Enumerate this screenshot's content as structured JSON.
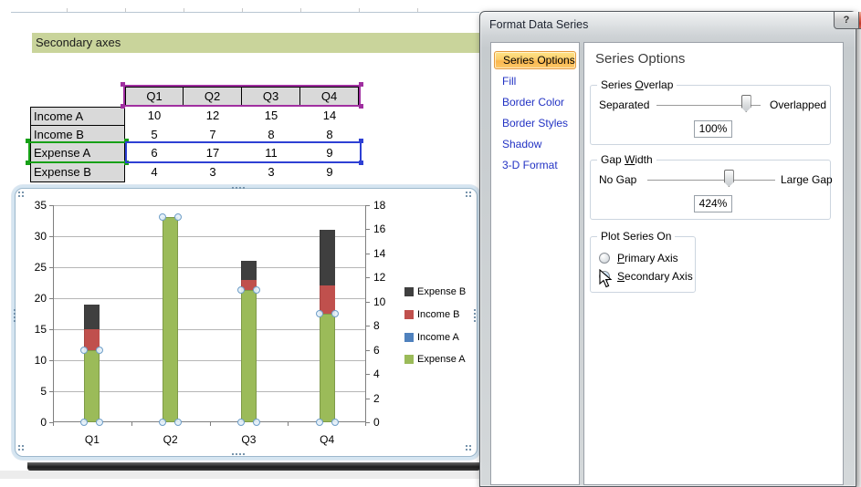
{
  "worksheet": {
    "banner": "Secondary axes",
    "table": {
      "col_headers": [
        "Q1",
        "Q2",
        "Q3",
        "Q4"
      ],
      "rows": [
        {
          "label": "Income A",
          "values": [
            10,
            12,
            15,
            14
          ]
        },
        {
          "label": "Income B",
          "values": [
            5,
            7,
            8,
            8
          ]
        },
        {
          "label": "Expense A",
          "values": [
            6,
            17,
            11,
            9
          ]
        },
        {
          "label": "Expense B",
          "values": [
            4,
            3,
            3,
            9
          ]
        }
      ],
      "selection_colors": {
        "category_range": "#a02fa0",
        "series_name_range": "#17a017",
        "values_range": "#2e40d4"
      },
      "selected_series_row": "Expense A"
    }
  },
  "chart_data": {
    "type": "bar",
    "subtype": "stacked-column-with-secondary-axis-overlay",
    "categories": [
      "Q1",
      "Q2",
      "Q3",
      "Q4"
    ],
    "series": [
      {
        "name": "Income A",
        "values": [
          10,
          12,
          15,
          14
        ],
        "color": "#4f81bd",
        "axis": "primary",
        "stacked": true
      },
      {
        "name": "Income B",
        "values": [
          5,
          7,
          8,
          8
        ],
        "color": "#c0504d",
        "axis": "primary",
        "stacked": true
      },
      {
        "name": "Expense B",
        "values": [
          4,
          3,
          3,
          9
        ],
        "color": "#3f3f3f",
        "axis": "primary",
        "stacked": true
      },
      {
        "name": "Expense A",
        "values": [
          6,
          17,
          11,
          9
        ],
        "color": "#9bbb59",
        "axis": "secondary",
        "selected": true
      }
    ],
    "primary_axis": {
      "min": 0,
      "max": 35,
      "step": 5,
      "ticks": [
        0,
        5,
        10,
        15,
        20,
        25,
        30,
        35
      ]
    },
    "secondary_axis": {
      "min": 0,
      "max": 18,
      "step": 2,
      "ticks": [
        0,
        2,
        4,
        6,
        8,
        10,
        12,
        14,
        16,
        18
      ]
    },
    "legend": [
      {
        "label": "Expense B",
        "color": "#3f3f3f"
      },
      {
        "label": "Income B",
        "color": "#c0504d"
      },
      {
        "label": "Income A",
        "color": "#4f81bd"
      },
      {
        "label": "Expense A",
        "color": "#9bbb59"
      }
    ],
    "legend_position": "right",
    "grid": true,
    "title": ""
  },
  "dialog": {
    "title": "Format Data Series",
    "help_glyph": "?",
    "close_glyph": "x",
    "sidebar": {
      "items": [
        "Series Options",
        "Fill",
        "Border Color",
        "Border Styles",
        "Shadow",
        "3-D Format"
      ],
      "selected": "Series Options"
    },
    "panel": {
      "heading": "Series Options",
      "series_overlap": {
        "caption": "Series Overlap",
        "accel": "O",
        "left_label": "Separated",
        "right_label": "Overlapped",
        "value": "100%",
        "slider_pos": 0.9
      },
      "gap_width": {
        "caption": "Gap Width",
        "accel": "W",
        "left_label": "No Gap",
        "right_label": "Large Gap",
        "value": "424%",
        "slider_pos": 0.65
      },
      "plot_series_on": {
        "caption": "Plot Series On",
        "options": [
          {
            "label": "Primary Axis",
            "accel": "P",
            "selected": false
          },
          {
            "label": "Secondary Axis",
            "accel": "S",
            "selected": true
          }
        ]
      }
    }
  },
  "colors": {
    "banner_bg": "#c9d49b",
    "sidebar_link": "#2333c4",
    "sidebar_selected_border": "#e69b3c",
    "gridline": "#b6b6b6",
    "selection_handle_ring": "#6f9ec7"
  }
}
